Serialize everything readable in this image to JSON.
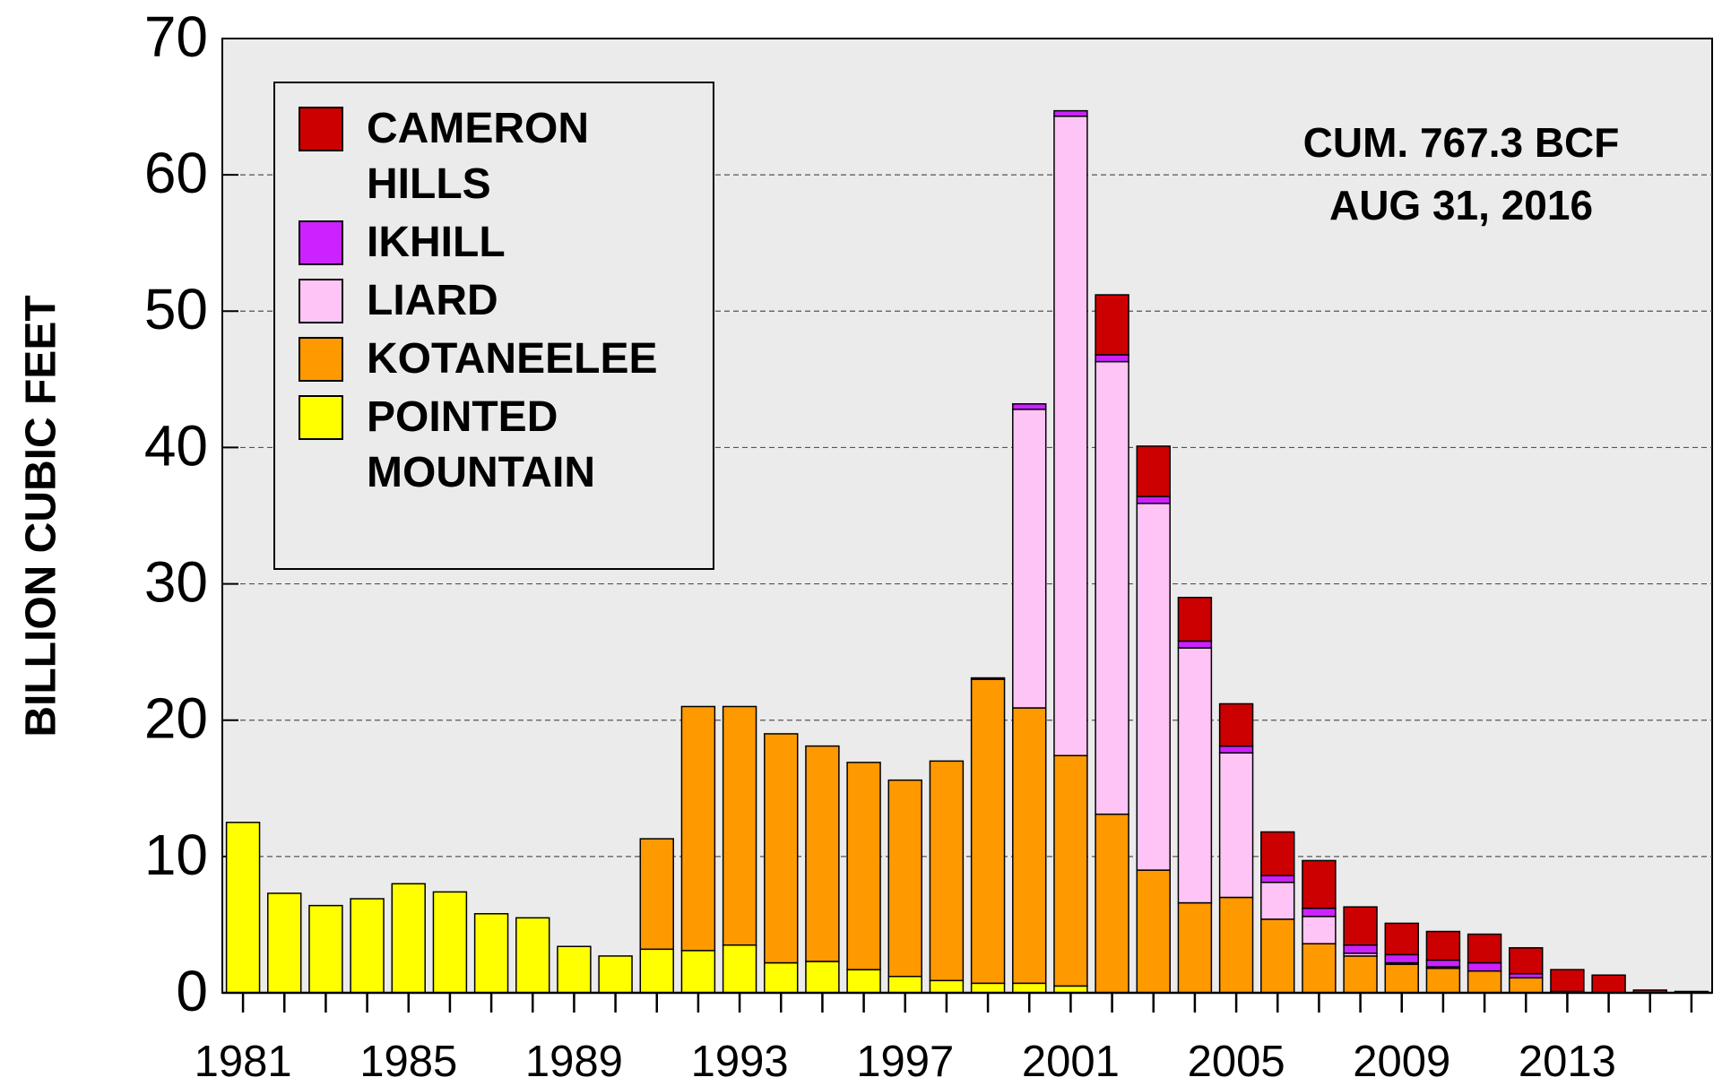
{
  "chart_data": {
    "type": "stacked_bar",
    "ylabel": "BILLION CUBIC FEET",
    "annotations": [
      "CUM. 767.3  BCF",
      "AUG 31, 2016"
    ],
    "categories": [
      "1981",
      null,
      null,
      null,
      "1985",
      null,
      null,
      null,
      "1989",
      null,
      null,
      null,
      "1993",
      null,
      null,
      null,
      "1997",
      null,
      null,
      null,
      "2001",
      null,
      null,
      null,
      "2005",
      null,
      null,
      null,
      "2009",
      null,
      null,
      null,
      "2013",
      null,
      null,
      null
    ],
    "series": [
      {
        "name": "POINTED MOUNTAIN",
        "color": "#ffff00",
        "values": [
          12.5,
          7.3,
          6.4,
          6.9,
          8.0,
          7.4,
          5.8,
          5.5,
          3.4,
          2.7,
          3.2,
          3.1,
          3.5,
          2.2,
          2.3,
          1.7,
          1.2,
          0.9,
          0.7,
          0.7,
          0.5,
          0,
          0,
          0,
          0,
          0,
          0,
          0,
          0,
          0,
          0,
          0,
          0,
          0,
          0,
          0
        ]
      },
      {
        "name": "KOTANEELEE",
        "color": "#ff9900",
        "values": [
          0,
          0,
          0,
          0,
          0,
          0,
          0,
          0,
          0,
          0,
          8.1,
          17.9,
          17.5,
          16.8,
          15.8,
          15.2,
          14.4,
          16.1,
          22.3,
          20.2,
          16.9,
          13.1,
          9.0,
          6.6,
          7.0,
          5.4,
          3.6,
          2.7,
          2.1,
          1.8,
          1.6,
          1.1,
          0.1,
          0,
          0,
          0
        ]
      },
      {
        "name": "LIARD",
        "color": "#ffc4f6",
        "values": [
          0,
          0,
          0,
          0,
          0,
          0,
          0,
          0,
          0,
          0,
          0,
          0,
          0,
          0,
          0,
          0,
          0,
          0,
          0.1,
          21.9,
          46.9,
          33.2,
          26.9,
          18.7,
          10.6,
          2.7,
          2.0,
          0.2,
          0.1,
          0.1,
          0,
          0,
          0,
          0,
          0,
          0
        ]
      },
      {
        "name": "IKHILL",
        "color": "#cc22ff",
        "values": [
          0,
          0,
          0,
          0,
          0,
          0,
          0,
          0,
          0,
          0,
          0,
          0,
          0,
          0,
          0,
          0,
          0,
          0,
          0,
          0.4,
          0.4,
          0.5,
          0.5,
          0.5,
          0.5,
          0.5,
          0.6,
          0.6,
          0.6,
          0.5,
          0.6,
          0.3,
          0,
          0,
          0,
          0
        ]
      },
      {
        "name": "CAMERON HILLS",
        "color": "#cc0000",
        "values": [
          0,
          0,
          0,
          0,
          0,
          0,
          0,
          0,
          0,
          0,
          0,
          0,
          0,
          0,
          0,
          0,
          0,
          0,
          0,
          0,
          0,
          4.4,
          3.7,
          3.2,
          3.1,
          3.2,
          3.5,
          2.8,
          2.3,
          2.1,
          2.1,
          1.9,
          1.6,
          1.3,
          0.2,
          0.1
        ]
      }
    ],
    "ylim": [
      0,
      70
    ],
    "yticks": [
      0,
      10,
      20,
      30,
      40,
      50,
      60,
      70
    ],
    "grid": true,
    "legend": "upper left"
  }
}
